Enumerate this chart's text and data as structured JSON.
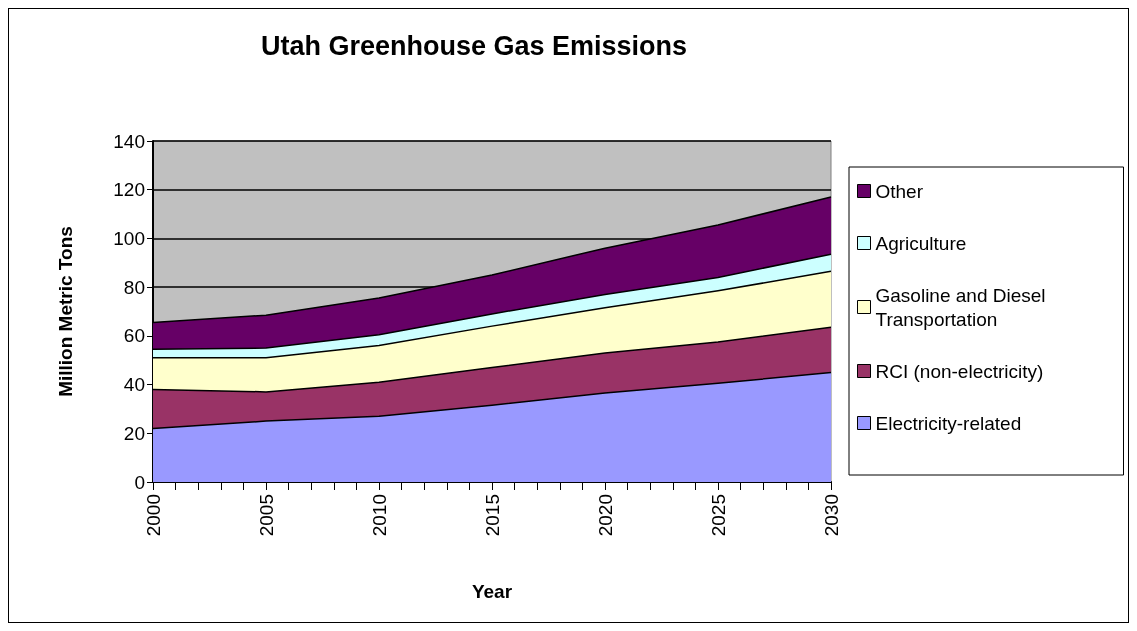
{
  "chart_data": {
    "type": "area",
    "title": "Utah Greenhouse Gas Emissions",
    "xlabel": "Year",
    "ylabel": "Million Metric Tons",
    "stacked": true,
    "x": [
      2000,
      2005,
      2010,
      2015,
      2020,
      2025,
      2030
    ],
    "series": [
      {
        "name": "Electricity-related",
        "color": "#9999ff",
        "values": [
          22,
          25,
          27,
          31.5,
          36.5,
          40.5,
          45
        ]
      },
      {
        "name": "RCI (non-electricity)",
        "color": "#993366",
        "values": [
          16,
          12,
          14,
          15.5,
          16.5,
          17,
          18.5
        ]
      },
      {
        "name": "Gasoline and Diesel Transportation",
        "color": "#ffffcc",
        "values": [
          13,
          14,
          15,
          17,
          18.5,
          21,
          23
        ]
      },
      {
        "name": "Agriculture",
        "color": "#ccffff",
        "values": [
          3.5,
          4,
          4.5,
          5,
          5.5,
          5.5,
          7
        ]
      },
      {
        "name": "Other",
        "color": "#660066",
        "values": [
          11,
          13.5,
          15,
          16,
          19,
          21.5,
          23.5
        ]
      }
    ],
    "xlim": [
      2000,
      2030
    ],
    "xticks": [
      2000,
      2005,
      2010,
      2015,
      2020,
      2025,
      2030
    ],
    "ylim": [
      0,
      140
    ],
    "yticks": [
      0,
      20,
      40,
      60,
      80,
      100,
      120,
      140
    ],
    "grid": "y",
    "legend": "right"
  }
}
